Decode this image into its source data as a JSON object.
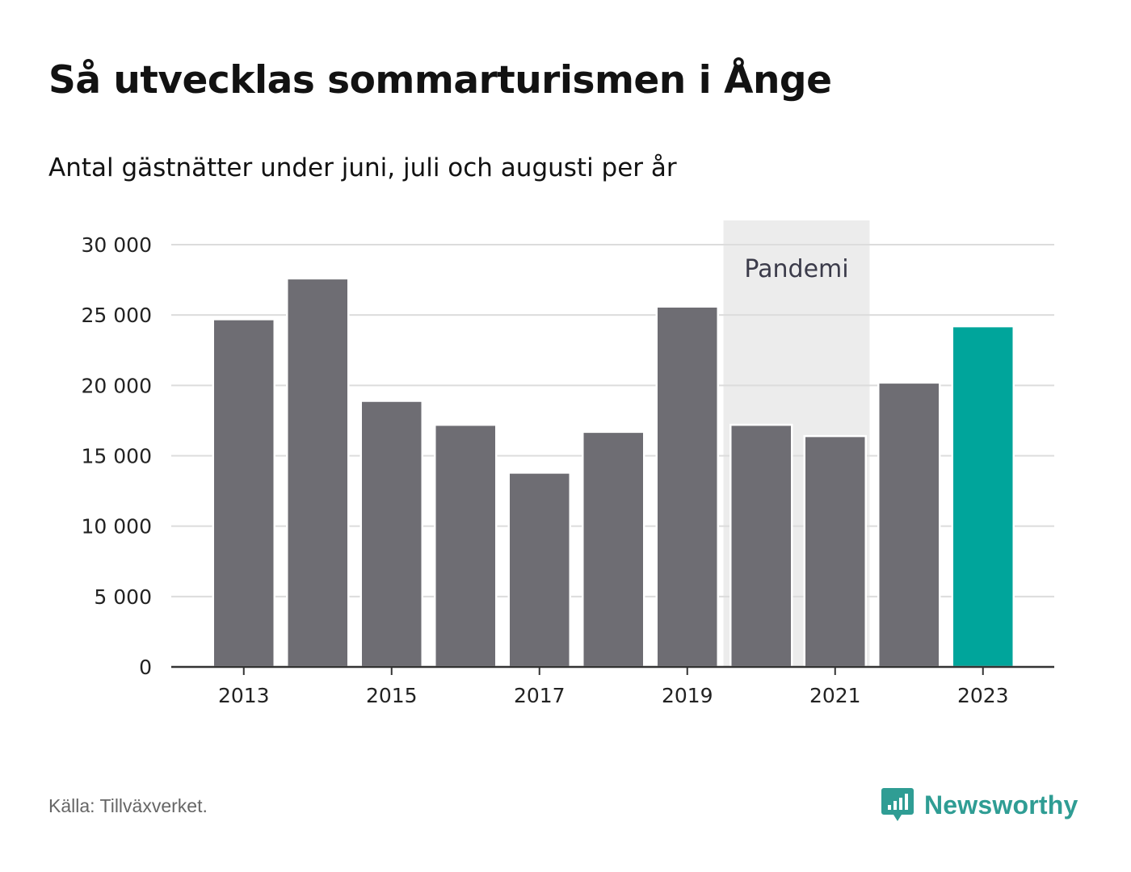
{
  "header": {
    "title": "Så utvecklas sommarturismen i Ånge",
    "subtitle": "Antal gästnätter under juni, juli och augusti per år"
  },
  "chart_data": {
    "type": "bar",
    "categories": [
      "2013",
      "2014",
      "2015",
      "2016",
      "2017",
      "2018",
      "2019",
      "2020",
      "2021",
      "2022",
      "2023"
    ],
    "values": [
      24700,
      27600,
      18900,
      17200,
      13800,
      16700,
      25600,
      17200,
      16400,
      20200,
      24200
    ],
    "x_tick_labels": [
      "2013",
      "2015",
      "2017",
      "2019",
      "2021",
      "2023"
    ],
    "y_ticks": [
      0,
      5000,
      10000,
      15000,
      20000,
      25000,
      30000
    ],
    "y_tick_labels": [
      "0",
      "5 000",
      "10 000",
      "15 000",
      "20 000",
      "25 000",
      "30 000"
    ],
    "ylim": [
      0,
      30000
    ],
    "grid": "horizontal",
    "highlight_category": "2023",
    "annotations": [
      {
        "label": "Pandemi",
        "from": "2020",
        "to": "2021"
      }
    ],
    "colors": {
      "bar": "#6e6d73",
      "highlight": "#00a59b",
      "band": "#ececec",
      "grid": "#dcdcdc",
      "axis": "#333333"
    }
  },
  "footer": {
    "source": "Källa: Tillväxverket.",
    "brand": "Newsworthy",
    "brand_icon": "newsworthy-logo-icon",
    "brand_color": "#2f9d94"
  }
}
